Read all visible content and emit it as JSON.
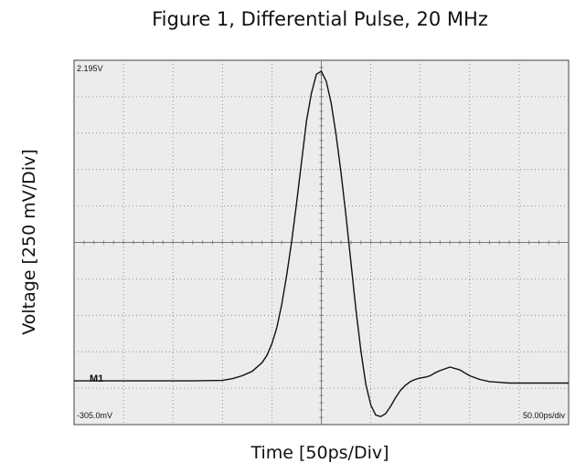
{
  "chart_data": {
    "type": "line",
    "title": "Figure 1, Differential Pulse, 20 MHz",
    "xlabel": "Time [50ps/Div]",
    "ylabel": "Voltage [250 mV/Div]",
    "scope_labels": {
      "top_left": "2.195V",
      "bottom_left": "-305.0mV",
      "bottom_right": "50.00ps/div",
      "marker": "M1"
    },
    "x_divisions": 10,
    "y_divisions": 10,
    "ylim": [
      -0.305,
      2.195
    ],
    "xlim": [
      0,
      500
    ],
    "grid": true,
    "colors": {
      "trace": "#111111",
      "grid": "#7a7a7a",
      "plot_bg": "#ececec",
      "frame": "#444444"
    },
    "series": [
      {
        "x": [
          0,
          30,
          60,
          90,
          120,
          150,
          160,
          170,
          180,
          190,
          195,
          200,
          205,
          210,
          215,
          220,
          225,
          230,
          235,
          240,
          245,
          250,
          255,
          260,
          265,
          270,
          275,
          280,
          285,
          290,
          295,
          300,
          305,
          310,
          315,
          320,
          325,
          330,
          335,
          340,
          345,
          350,
          355,
          360,
          365,
          370,
          380,
          390,
          400,
          410,
          420,
          430,
          440,
          450,
          460,
          470,
          480,
          490,
          500
        ],
        "y": [
          -0.005,
          -0.005,
          -0.005,
          -0.005,
          -0.005,
          -0.002,
          0.01,
          0.03,
          0.06,
          0.12,
          0.17,
          0.25,
          0.36,
          0.52,
          0.72,
          0.95,
          1.22,
          1.5,
          1.78,
          1.97,
          2.1,
          2.12,
          2.05,
          1.9,
          1.68,
          1.42,
          1.12,
          0.8,
          0.48,
          0.2,
          -0.03,
          -0.17,
          -0.24,
          -0.25,
          -0.23,
          -0.18,
          -0.12,
          -0.07,
          -0.035,
          -0.01,
          0.005,
          0.015,
          0.02,
          0.03,
          0.05,
          0.065,
          0.09,
          0.07,
          0.03,
          0.005,
          -0.01,
          -0.015,
          -0.02,
          -0.02,
          -0.02,
          -0.02,
          -0.02,
          -0.02,
          -0.02
        ]
      }
    ]
  }
}
